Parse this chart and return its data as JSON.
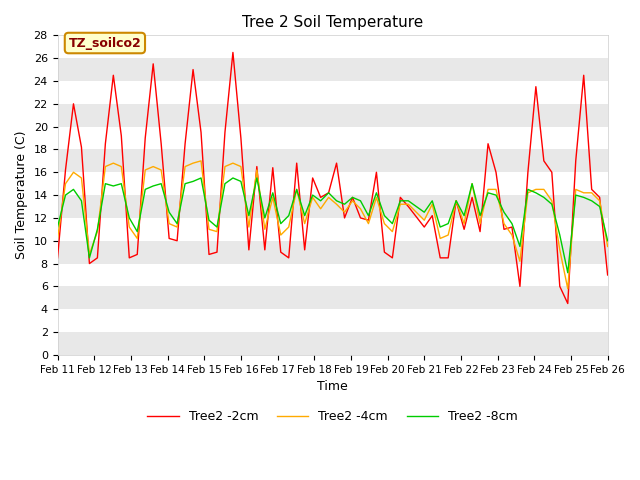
{
  "title": "Tree 2 Soil Temperature",
  "xlabel": "Time",
  "ylabel": "Soil Temperature (C)",
  "annotation": "TZ_soilco2",
  "ylim": [
    0,
    28
  ],
  "yticks": [
    0,
    2,
    4,
    6,
    8,
    10,
    12,
    14,
    16,
    18,
    20,
    22,
    24,
    26,
    28
  ],
  "x_labels": [
    "Feb 11",
    "Feb 12",
    "Feb 13",
    "Feb 14",
    "Feb 15",
    "Feb 16",
    "Feb 17",
    "Feb 18",
    "Feb 19",
    "Feb 20",
    "Feb 21",
    "Feb 22",
    "Feb 23",
    "Feb 24",
    "Feb 25",
    "Feb 26"
  ],
  "legend_labels": [
    "Tree2 -2cm",
    "Tree2 -4cm",
    "Tree2 -8cm"
  ],
  "line_colors": [
    "#ff0000",
    "#ffaa00",
    "#00cc00"
  ],
  "background_color": "#ffffff",
  "plot_bg_color": "#ffffff",
  "band_color_a": "#e8e8e8",
  "band_color_b": "#ffffff",
  "title_fontsize": 11,
  "annotation_bg": "#ffffcc",
  "annotation_border": "#cc8800",
  "annotation_text_color": "#880000",
  "tree2_2cm": [
    8.5,
    16.2,
    22.0,
    18.2,
    8.0,
    8.5,
    18.5,
    24.5,
    19.2,
    8.5,
    8.8,
    19.0,
    25.5,
    18.5,
    10.2,
    10.0,
    18.5,
    25.0,
    19.5,
    8.8,
    9.0,
    19.5,
    26.5,
    19.0,
    9.2,
    16.5,
    9.2,
    16.4,
    9.0,
    8.5,
    16.8,
    9.2,
    15.5,
    13.8,
    14.2,
    16.8,
    12.0,
    13.8,
    12.0,
    11.8,
    16.0,
    9.0,
    8.5,
    13.8,
    13.0,
    12.1,
    11.2,
    12.2,
    8.5,
    8.5,
    13.5,
    11.0,
    13.8,
    10.8,
    18.5,
    16.0,
    11.0,
    11.2,
    6.0,
    16.0,
    23.5,
    17.0,
    16.0,
    6.0,
    4.5,
    17.0,
    24.5,
    14.5,
    13.8,
    7.0
  ],
  "tree2_4cm": [
    10.2,
    15.0,
    16.0,
    15.5,
    8.8,
    10.8,
    16.5,
    16.8,
    16.5,
    11.2,
    10.2,
    16.2,
    16.5,
    16.2,
    11.5,
    11.2,
    16.5,
    16.8,
    17.0,
    11.0,
    10.8,
    16.5,
    16.8,
    16.5,
    11.2,
    16.2,
    11.0,
    13.8,
    10.5,
    11.2,
    14.5,
    11.5,
    13.8,
    12.8,
    13.8,
    13.2,
    12.5,
    13.5,
    12.8,
    11.5,
    13.8,
    11.5,
    10.8,
    13.2,
    13.2,
    12.5,
    11.8,
    13.2,
    10.2,
    10.5,
    13.5,
    11.5,
    15.0,
    11.5,
    14.5,
    14.5,
    11.5,
    10.5,
    8.2,
    14.2,
    14.5,
    14.5,
    13.5,
    9.2,
    5.8,
    14.5,
    14.2,
    14.2,
    13.5,
    9.5
  ],
  "tree2_8cm": [
    11.2,
    14.0,
    14.5,
    13.5,
    8.5,
    11.0,
    15.0,
    14.8,
    15.0,
    12.0,
    10.8,
    14.5,
    14.8,
    15.0,
    12.5,
    11.5,
    15.0,
    15.2,
    15.5,
    11.8,
    11.2,
    15.0,
    15.5,
    15.2,
    12.2,
    15.5,
    12.0,
    14.2,
    11.5,
    12.2,
    14.5,
    12.2,
    14.0,
    13.5,
    14.2,
    13.5,
    13.2,
    13.8,
    13.5,
    12.2,
    14.2,
    12.2,
    11.5,
    13.5,
    13.5,
    13.0,
    12.5,
    13.5,
    11.2,
    11.5,
    13.5,
    12.2,
    15.0,
    12.2,
    14.2,
    14.0,
    12.5,
    11.5,
    9.5,
    14.5,
    14.2,
    13.8,
    13.2,
    10.5,
    7.2,
    14.0,
    13.8,
    13.5,
    13.0,
    10.0
  ]
}
